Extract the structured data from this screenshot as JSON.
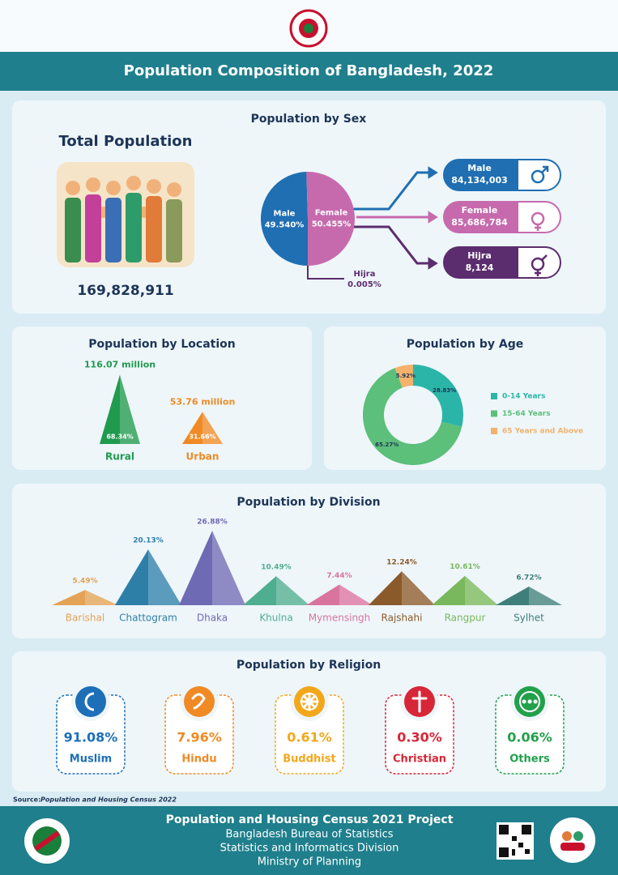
{
  "header": {
    "title": "Population Composition of Bangladesh, 2022"
  },
  "sex": {
    "total_title": "Total Population",
    "total": "169,828,911",
    "counts": [
      "84,134,003",
      "85,686,784",
      "8,124"
    ]
  },
  "chart_data": [
    {
      "type": "pie",
      "title": "Population by Sex",
      "categories": [
        "Male",
        "Female",
        "Hijra"
      ],
      "values": [
        49.54,
        50.455,
        0.005
      ],
      "value_labels": [
        "49.540%",
        "50.455%",
        "0.005%"
      ],
      "colors": [
        "#1f6fb2",
        "#c76aad",
        "#5c2d6e"
      ]
    },
    {
      "type": "triangle",
      "title": "Population by Location",
      "categories": [
        "Rural",
        "Urban"
      ],
      "values": [
        68.34,
        31.66
      ],
      "value_labels": [
        "68.34%",
        "31.66%"
      ],
      "totals": [
        "116.07 million",
        "53.76 million"
      ],
      "colors": [
        "#1f9a4e",
        "#f08a24"
      ]
    },
    {
      "type": "donut",
      "title": "Population by Age",
      "categories": [
        "0-14 Years",
        "15-64 Years",
        "65 Years and Above"
      ],
      "values": [
        28.83,
        65.27,
        5.92
      ],
      "value_labels": [
        "28.83%",
        "65.27%",
        "5.92%"
      ],
      "colors": [
        "#2bb5a8",
        "#5cbf7a",
        "#f4b26b"
      ]
    },
    {
      "type": "triangle",
      "title": "Population by Division",
      "categories": [
        "Barishal",
        "Chattogram",
        "Dhaka",
        "Khulna",
        "Mymensingh",
        "Rajshahi",
        "Rangpur",
        "Sylhet"
      ],
      "values": [
        5.49,
        20.13,
        26.88,
        10.49,
        7.44,
        12.24,
        10.61,
        6.72
      ],
      "value_labels": [
        "5.49%",
        "20.13%",
        "26.88%",
        "10.49%",
        "7.44%",
        "12.24%",
        "10.61%",
        "6.72%"
      ],
      "colors": [
        "#e3a255",
        "#2e7fa8",
        "#6f6ab4",
        "#4fae8f",
        "#d9749f",
        "#8b5a2b",
        "#79b85c",
        "#3f7f7a"
      ]
    }
  ],
  "religion": {
    "title": "Population by Religion",
    "items": [
      {
        "value": "91.08%",
        "label": "Muslim"
      },
      {
        "value": "7.96%",
        "label": "Hindu"
      },
      {
        "value": "0.61%",
        "label": "Buddhist"
      },
      {
        "value": "0.30%",
        "label": "Christian"
      },
      {
        "value": "0.06%",
        "label": "Others"
      }
    ]
  },
  "source": {
    "label": "Source:",
    "text": "Population and Housing Census 2022"
  },
  "footer": {
    "title": "Population and Housing Census 2021 Project",
    "lines": [
      "Bangladesh Bureau of Statistics",
      "Statistics and Informatics Division",
      "Ministry of Planning"
    ]
  }
}
